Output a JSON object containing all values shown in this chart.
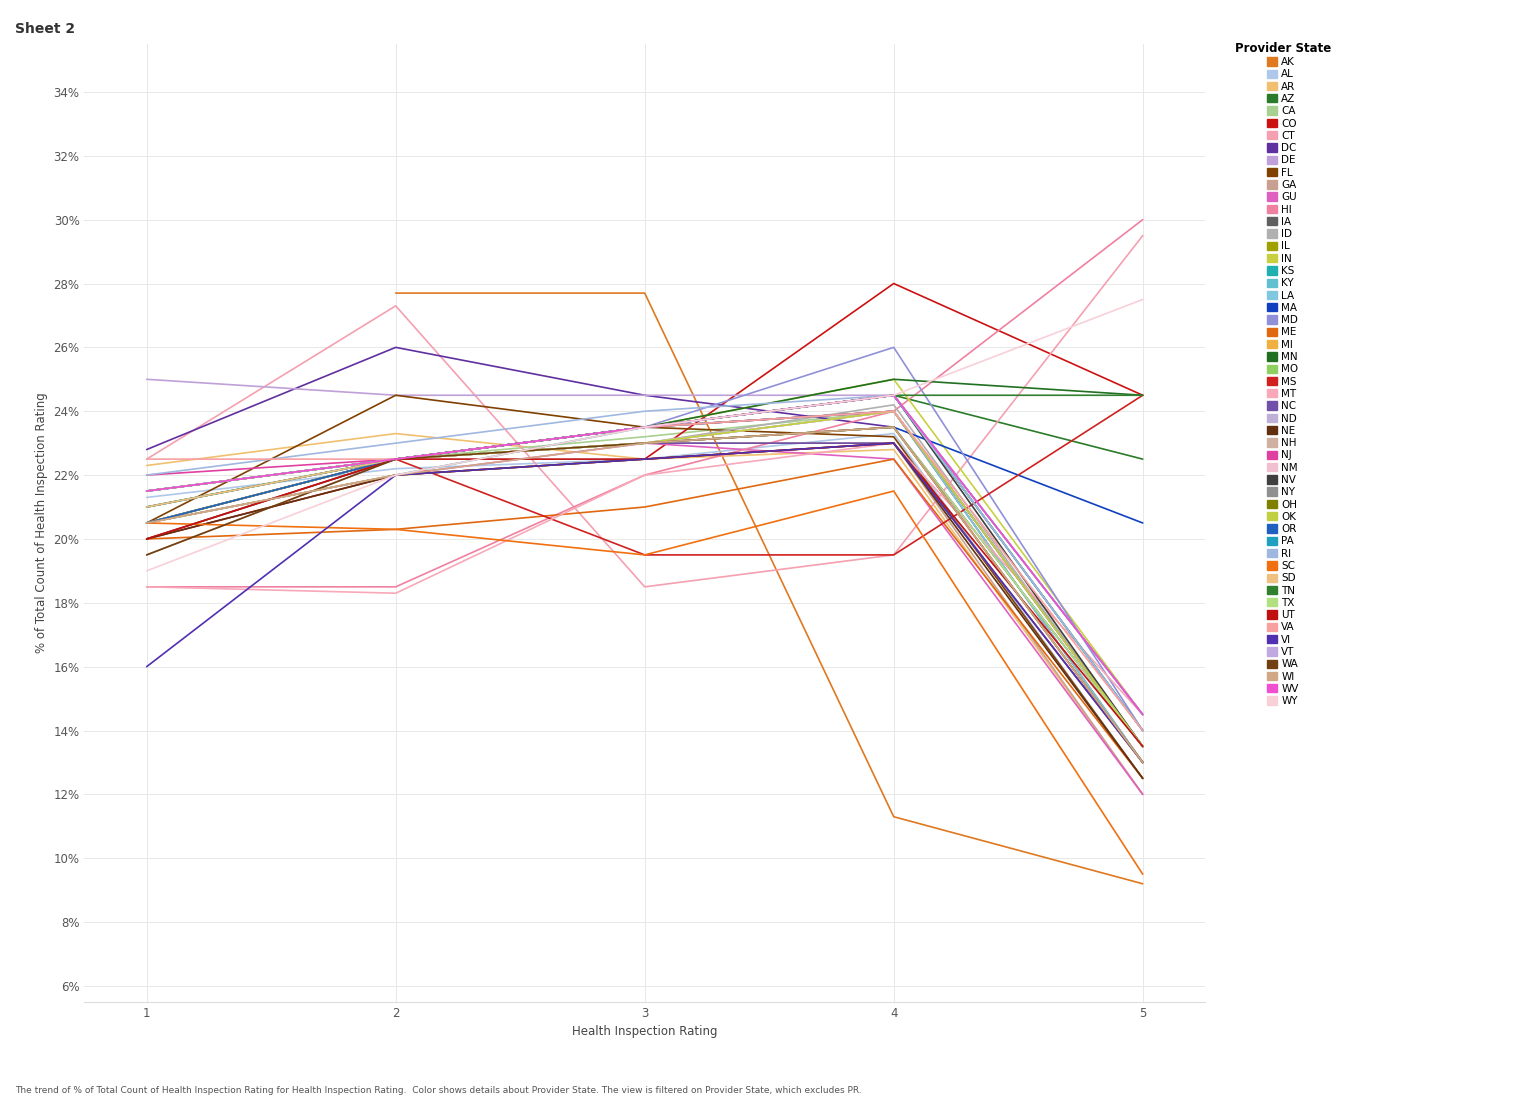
{
  "title": "Sheet 2",
  "xlabel": "Health Inspection Rating",
  "ylabel": "% of Total Count of Health Inspection Rating",
  "caption": "The trend of % of Total Count of Health Inspection Rating for Health Inspection Rating.  Color shows details about Provider State. The view is filtered on Provider State, which excludes PR.",
  "x_ticks": [
    1,
    2,
    3,
    4,
    5
  ],
  "y_ticks": [
    6,
    8,
    10,
    12,
    14,
    16,
    18,
    20,
    22,
    24,
    26,
    28,
    30,
    32,
    34
  ],
  "states": {
    "AK": {
      "color": "#E07820",
      "data": [
        null,
        27.7,
        27.7,
        11.3,
        9.2
      ]
    },
    "AL": {
      "color": "#AFC7E8",
      "data": [
        21.3,
        22.2,
        22.5,
        23.3,
        12.5
      ]
    },
    "AR": {
      "color": "#F0C070",
      "data": [
        22.3,
        23.3,
        22.5,
        22.8,
        12.0
      ]
    },
    "AZ": {
      "color": "#2A7B2A",
      "data": [
        21.5,
        22.5,
        23.5,
        24.5,
        22.5
      ]
    },
    "CA": {
      "color": "#A8D090",
      "data": [
        21.5,
        22.5,
        23.2,
        24.0,
        13.0
      ]
    },
    "CO": {
      "color": "#CC1111",
      "data": [
        20.0,
        22.0,
        22.5,
        28.0,
        24.5
      ]
    },
    "CT": {
      "color": "#F4A0B0",
      "data": [
        22.5,
        27.3,
        18.5,
        19.5,
        29.5
      ]
    },
    "DC": {
      "color": "#6030A0",
      "data": [
        22.8,
        26.0,
        24.5,
        23.5,
        13.5
      ]
    },
    "DE": {
      "color": "#C0A0D8",
      "data": [
        25.0,
        24.5,
        24.5,
        24.5,
        14.0
      ]
    },
    "FL": {
      "color": "#804000",
      "data": [
        20.5,
        24.5,
        23.5,
        23.2,
        12.5
      ]
    },
    "GA": {
      "color": "#C8A090",
      "data": [
        19.5,
        22.5,
        23.0,
        23.0,
        12.0
      ]
    },
    "GU": {
      "color": "#E060C0",
      "data": [
        20.5,
        22.0,
        23.0,
        22.5,
        12.0
      ]
    },
    "HI": {
      "color": "#F080A0",
      "data": [
        18.5,
        18.5,
        22.0,
        24.0,
        30.0
      ]
    },
    "IA": {
      "color": "#606060",
      "data": [
        20.5,
        22.5,
        23.5,
        24.0,
        13.0
      ]
    },
    "ID": {
      "color": "#B0B0B0",
      "data": [
        20.5,
        22.5,
        23.0,
        24.2,
        13.5
      ]
    },
    "IL": {
      "color": "#A0A000",
      "data": [
        20.5,
        22.5,
        23.0,
        23.5,
        13.0
      ]
    },
    "IN": {
      "color": "#C8D040",
      "data": [
        21.0,
        22.5,
        23.5,
        25.0,
        14.5
      ]
    },
    "KS": {
      "color": "#20B0B0",
      "data": [
        20.5,
        22.0,
        23.5,
        24.0,
        13.5
      ]
    },
    "KY": {
      "color": "#60C0D0",
      "data": [
        20.0,
        22.5,
        23.5,
        24.5,
        14.0
      ]
    },
    "LA": {
      "color": "#80C8E0",
      "data": [
        20.5,
        22.5,
        23.0,
        24.0,
        13.0
      ]
    },
    "MA": {
      "color": "#1040C0",
      "data": [
        21.5,
        22.5,
        23.0,
        23.5,
        20.5
      ]
    },
    "MD": {
      "color": "#9090D8",
      "data": [
        21.5,
        22.5,
        23.5,
        26.0,
        14.0
      ]
    },
    "ME": {
      "color": "#E06810",
      "data": [
        20.0,
        20.3,
        21.0,
        22.5,
        12.5
      ]
    },
    "MI": {
      "color": "#F0B040",
      "data": [
        20.5,
        22.0,
        22.5,
        23.0,
        13.0
      ]
    },
    "MN": {
      "color": "#207020",
      "data": [
        21.5,
        22.5,
        23.5,
        25.0,
        24.5
      ]
    },
    "MO": {
      "color": "#90D060",
      "data": [
        21.5,
        22.5,
        23.5,
        24.5,
        14.5
      ]
    },
    "MS": {
      "color": "#D02020",
      "data": [
        20.0,
        22.5,
        19.5,
        19.5,
        24.5
      ]
    },
    "MT": {
      "color": "#F8A8B8",
      "data": [
        18.5,
        18.3,
        22.0,
        23.0,
        14.5
      ]
    },
    "NC": {
      "color": "#7050A8",
      "data": [
        20.5,
        22.5,
        23.0,
        23.0,
        13.0
      ]
    },
    "ND": {
      "color": "#C0B0D8",
      "data": [
        21.0,
        22.5,
        23.0,
        24.0,
        13.5
      ]
    },
    "NE": {
      "color": "#603010",
      "data": [
        20.0,
        22.0,
        22.5,
        23.0,
        12.5
      ]
    },
    "NH": {
      "color": "#D0B0A0",
      "data": [
        20.5,
        22.5,
        23.0,
        24.0,
        13.5
      ]
    },
    "NJ": {
      "color": "#E040A0",
      "data": [
        22.0,
        22.5,
        23.5,
        24.0,
        13.5
      ]
    },
    "NM": {
      "color": "#F0C0D0",
      "data": [
        21.5,
        22.5,
        23.0,
        24.0,
        13.5
      ]
    },
    "NV": {
      "color": "#404040",
      "data": [
        20.5,
        22.5,
        23.5,
        24.5,
        13.5
      ]
    },
    "NY": {
      "color": "#909090",
      "data": [
        21.0,
        22.5,
        23.5,
        24.0,
        13.5
      ]
    },
    "OH": {
      "color": "#808000",
      "data": [
        21.0,
        22.5,
        23.5,
        24.5,
        14.0
      ]
    },
    "OK": {
      "color": "#C0D040",
      "data": [
        20.5,
        22.5,
        23.0,
        24.0,
        13.5
      ]
    },
    "OR": {
      "color": "#2060C0",
      "data": [
        20.5,
        22.5,
        23.5,
        24.5,
        14.5
      ]
    },
    "PA": {
      "color": "#20A0C0",
      "data": [
        21.0,
        22.5,
        23.5,
        24.5,
        14.0
      ]
    },
    "RI": {
      "color": "#A0B8E0",
      "data": [
        22.0,
        23.0,
        24.0,
        24.5,
        14.0
      ]
    },
    "SC": {
      "color": "#F07010",
      "data": [
        20.5,
        20.3,
        19.5,
        21.5,
        9.5
      ]
    },
    "SD": {
      "color": "#F0C080",
      "data": [
        21.0,
        22.5,
        23.0,
        23.5,
        13.0
      ]
    },
    "TN": {
      "color": "#308030",
      "data": [
        21.5,
        22.5,
        23.5,
        24.5,
        24.5
      ]
    },
    "TX": {
      "color": "#B0E080",
      "data": [
        21.5,
        22.5,
        23.0,
        23.5,
        13.5
      ]
    },
    "UT": {
      "color": "#C01010",
      "data": [
        20.0,
        22.5,
        22.5,
        23.0,
        13.5
      ]
    },
    "VA": {
      "color": "#F8A0A0",
      "data": [
        22.5,
        22.5,
        23.5,
        24.0,
        14.0
      ]
    },
    "VI": {
      "color": "#5030B0",
      "data": [
        16.0,
        22.0,
        22.5,
        23.0,
        13.0
      ]
    },
    "VT": {
      "color": "#C0A8E0",
      "data": [
        21.5,
        22.5,
        23.5,
        24.5,
        14.5
      ]
    },
    "WA": {
      "color": "#704010",
      "data": [
        19.5,
        22.5,
        23.0,
        23.5,
        13.0
      ]
    },
    "WI": {
      "color": "#D0A888",
      "data": [
        20.5,
        22.0,
        23.0,
        23.5,
        13.0
      ]
    },
    "WV": {
      "color": "#F050D0",
      "data": [
        21.5,
        22.5,
        23.5,
        24.5,
        14.5
      ]
    },
    "WY": {
      "color": "#F8D0D8",
      "data": [
        19.0,
        22.0,
        23.5,
        24.5,
        27.5
      ]
    }
  }
}
